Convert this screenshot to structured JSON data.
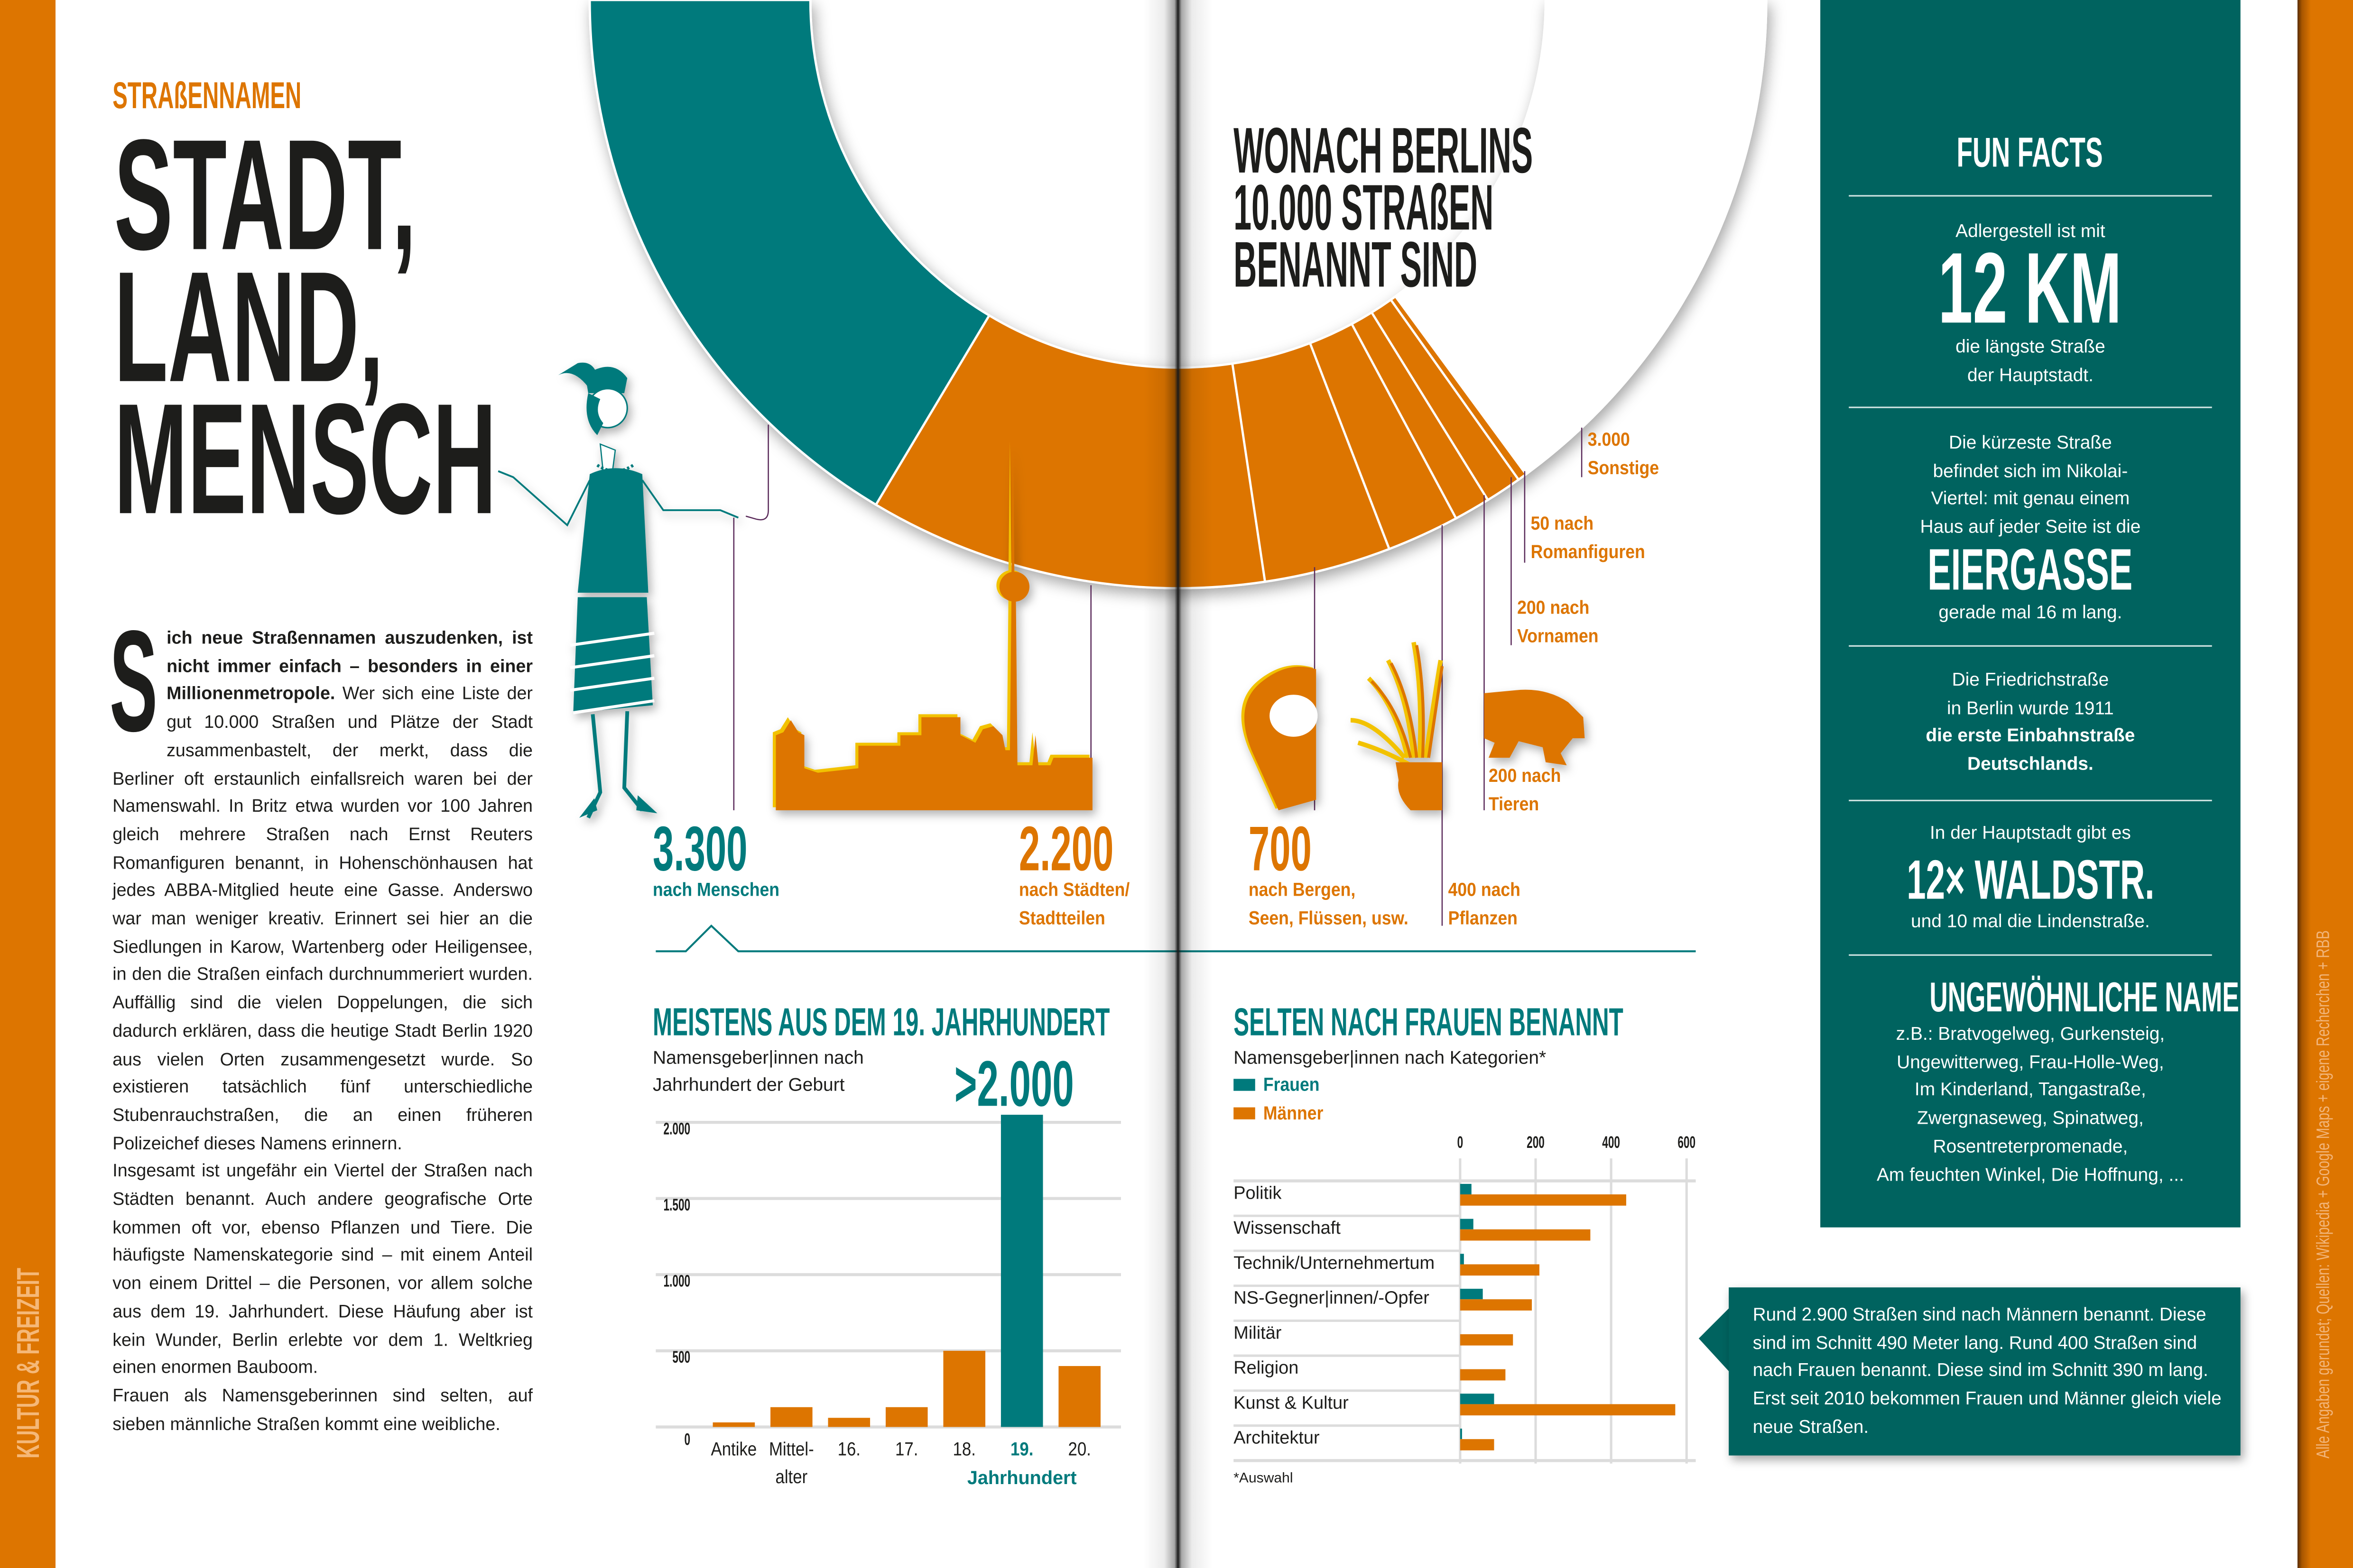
{
  "colors": {
    "teal": "#007a7c",
    "panel_teal": "#00635f",
    "orange": "#dd7500",
    "yellow": "#f2c200",
    "leader": "#5a2a5a",
    "text": "#1d1d1b"
  },
  "section_tab": "KULTUR & FREIZEIT",
  "source_note": "Alle Angaben gerundet; Quellen: Wikipedia + Google Maps + eigene Recherchen + RBB",
  "header": {
    "kicker": "STRAßENNAMEN",
    "title_lines": [
      "STADT,",
      "LAND,",
      "MENSCH"
    ]
  },
  "article": {
    "dropcap": "S",
    "lead_bold": "ich neue Straßennamen auszudenken, ist nicht immer einfach – besonders in einer Millionenmetropole.",
    "lead_rest": " Wer sich eine Liste der gut 10.000 Straßen und Plätze der Stadt zusammenbastelt, der merkt, dass die Berliner oft erstaunlich einfallsreich waren bei der Namenswahl. In Britz etwa wurden vor 100 Jahren gleich mehrere Straßen nach Ernst Reuters Romanfiguren benannt, in Hohenschönhausen hat jedes ABBA-Mitglied heute eine Gasse. Anderswo war man weniger kreativ. Erinnert sei hier an die Siedlungen in Karow, Wartenberg oder Heiligensee, in den die Straßen einfach durchnummeriert wurden. Auffällig sind die vielen Doppelungen, die sich dadurch erklären, dass die heutige Stadt Berlin 1920 aus vielen Orten zusammengesetzt wurde. So existieren tatsächlich fünf unterschiedliche Stubenrauchstraßen, die an einen früheren Polizeichef dieses Namens erinnern.",
    "paragraphs": [
      "Insgesamt ist ungefähr ein Viertel der Straßen nach Städten benannt. Auch andere geografische Orte kommen oft vor, ebenso Pflanzen und Tiere. Die häufigste Namenskategorie sind – mit einem Anteil von einem Drittel – die Personen, vor allem solche aus dem 19. Jahrhundert. Diese Häufung aber ist kein Wunder, Berlin erlebte vor dem 1. Weltkrieg einen enormen Bauboom.",
      "Frauen als Namensgeberinnen sind selten, auf sieben männliche Straßen kommt eine weibliche."
    ]
  },
  "ring": {
    "title_lines": [
      "WONACH BERLINS",
      "10.000 STRAßEN",
      "BENANNT SIND"
    ],
    "segments": [
      {
        "key": "menschen",
        "value": 3300,
        "color": "#007a7c",
        "number": "3.300",
        "label_lines": [
          "nach Menschen"
        ]
      },
      {
        "key": "staedte",
        "value": 2200,
        "color": "#dd7500",
        "number": "2.200",
        "label_lines": [
          "nach Städten/",
          "Stadtteilen"
        ]
      },
      {
        "key": "bergen",
        "value": 700,
        "color": "#dd7500",
        "number": "700",
        "label_lines": [
          "nach Bergen,",
          "Seen, Flüssen, usw."
        ],
        "icon": "map-pin-icon"
      },
      {
        "key": "pflanzen",
        "value": 400,
        "color": "#dd7500",
        "label_lines": [
          "400 nach",
          "Pflanzen"
        ],
        "icon": "plant-icon"
      },
      {
        "key": "tieren",
        "value": 200,
        "color": "#dd7500",
        "label_lines": [
          "200 nach",
          "Tieren"
        ],
        "icon": "bear-icon"
      },
      {
        "key": "vornamen",
        "value": 200,
        "color": "#dd7500",
        "label_lines": [
          "200 nach",
          "Vornamen"
        ]
      },
      {
        "key": "romanfiguren",
        "value": 50,
        "color": "#dd7500",
        "label_lines": [
          "50 nach",
          "Romanfiguren"
        ]
      },
      {
        "key": "sonstige",
        "value": 3000,
        "color": "#ffffff",
        "label_lines": [
          "3.000",
          "Sonstige"
        ]
      }
    ]
  },
  "chart_data": [
    {
      "type": "bar",
      "title": "MEISTENS AUS DEM 19. JAHRHUNDERT",
      "subtitle_lines": [
        "Namensgeber|innen nach",
        "Jahrhundert der Geburt"
      ],
      "annotation": ">2.000",
      "categories": [
        "Antike",
        "Mittel-alter",
        "16.",
        "17.",
        "18.",
        "19.",
        "20."
      ],
      "values": [
        30,
        130,
        60,
        130,
        500,
        2050,
        400
      ],
      "highlight_category": "19.",
      "highlight_color": "#007a7c",
      "bar_color": "#dd7500",
      "xlabel": "Jahrhundert",
      "ylim": [
        0,
        2000
      ],
      "yticks": [
        0,
        500,
        1000,
        1500,
        2000
      ],
      "ytick_labels": [
        "0",
        "500",
        "1.000",
        "1.500",
        "2.000"
      ],
      "grid": true
    },
    {
      "type": "bar",
      "orientation": "horizontal",
      "title": "SELTEN NACH FRAUEN BENANNT",
      "subtitle": "Namensgeber|innen nach Kategorien*",
      "categories": [
        "Politik",
        "Wissenschaft",
        "Technik/Unternehmertum",
        "NS-Gegner|innen/-Opfer",
        "Militär",
        "Religion",
        "Kunst & Kultur",
        "Architektur"
      ],
      "series": [
        {
          "name": "Frauen",
          "color": "#007a7c",
          "values": [
            30,
            35,
            10,
            60,
            0,
            0,
            90,
            5
          ]
        },
        {
          "name": "Männer",
          "color": "#dd7500",
          "values": [
            440,
            345,
            210,
            190,
            140,
            120,
            570,
            90
          ]
        }
      ],
      "xlim": [
        0,
        600
      ],
      "xticks": [
        0,
        200,
        400,
        600
      ],
      "legend": "top-left",
      "grid": true,
      "footnote": "*Auswahl"
    }
  ],
  "fun_facts": {
    "title": "FUN FACTS",
    "f1": {
      "pre": "Adlergestell ist mit",
      "big": "12 KM",
      "post_lines": [
        "die längste Straße",
        "der Hauptstadt."
      ]
    },
    "f2": {
      "pre_lines": [
        "Die kürzeste Straße",
        "befindet sich im Nikolai-",
        "Viertel: mit genau einem",
        "Haus auf jeder Seite ist die"
      ],
      "big": "EIERGASSE",
      "post": "gerade mal 16 m lang."
    },
    "f3": {
      "lines": [
        "Die Friedrichstraße",
        "in Berlin wurde 1911"
      ],
      "bold_lines": [
        "die erste Einbahnstraße",
        "Deutschlands."
      ]
    },
    "f4": {
      "pre": "In der Hauptstadt gibt es",
      "big": "12× WALDSTR.",
      "post": "und 10 mal die Lindenstraße."
    },
    "f5": {
      "title": "UNGEWÖHNLICHE NAMEN",
      "lines": [
        "z.B.: Bratvogelweg, Gurkensteig,",
        "Ungewitterweg, Frau-Holle-Weg,",
        "Im Kinderland, Tangastraße,",
        "Zwergnaseweg, Spinatweg,",
        "Rosentreterpromenade,",
        "Am feuchten Winkel, Die Hoffnung, ..."
      ]
    }
  },
  "callout": {
    "text": "Rund 2.900 Straßen sind nach Männern benannt. Diese sind im Schnitt 490 Meter lang. Rund 400 Straßen sind nach Frauen benannt. Diese sind im Schnitt 390 m lang. Erst seit 2010 bekommen Frauen und Männer gleich viele neue Straßen."
  }
}
